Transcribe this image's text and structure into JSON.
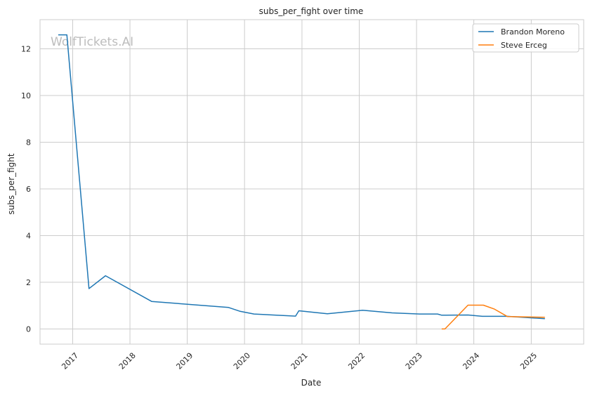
{
  "chart_data": {
    "type": "line",
    "title": "subs_per_fight over time",
    "xlabel": "Date",
    "ylabel": "subs_per_fight",
    "watermark": "WolfTickets.AI",
    "x_type": "date",
    "xlim": [
      "2016-06-07",
      "2025-12-01"
    ],
    "ylim": [
      -0.65,
      13.25
    ],
    "yticks": [
      0,
      2,
      4,
      6,
      8,
      10,
      12
    ],
    "xticks": [
      {
        "date": "2017-01-01",
        "label": "2017"
      },
      {
        "date": "2018-01-01",
        "label": "2018"
      },
      {
        "date": "2019-01-01",
        "label": "2019"
      },
      {
        "date": "2020-01-01",
        "label": "2020"
      },
      {
        "date": "2021-01-01",
        "label": "2021"
      },
      {
        "date": "2022-01-01",
        "label": "2022"
      },
      {
        "date": "2023-01-01",
        "label": "2023"
      },
      {
        "date": "2024-01-01",
        "label": "2024"
      },
      {
        "date": "2025-01-01",
        "label": "2025"
      }
    ],
    "grid": true,
    "legend_position": "top-right",
    "series": [
      {
        "name": "Brandon Moreno",
        "color": "#1f77b4",
        "points": [
          [
            "2016-10-01",
            12.6
          ],
          [
            "2016-11-25",
            12.6
          ],
          [
            "2017-04-15",
            1.73
          ],
          [
            "2017-07-29",
            2.28
          ],
          [
            "2018-05-19",
            1.18
          ],
          [
            "2019-09-21",
            0.92
          ],
          [
            "2019-12-01",
            0.76
          ],
          [
            "2020-03-01",
            0.64
          ],
          [
            "2020-11-21",
            0.55
          ],
          [
            "2020-12-12",
            0.78
          ],
          [
            "2021-06-12",
            0.65
          ],
          [
            "2022-01-22",
            0.8
          ],
          [
            "2022-07-30",
            0.69
          ],
          [
            "2023-01-21",
            0.64
          ],
          [
            "2023-05-15",
            0.64
          ],
          [
            "2023-06-10",
            0.59
          ],
          [
            "2023-11-25",
            0.6
          ],
          [
            "2024-02-24",
            0.54
          ],
          [
            "2024-08-01",
            0.54
          ],
          [
            "2025-03-29",
            0.44
          ]
        ]
      },
      {
        "name": "Steve Erceg",
        "color": "#ff7f0e",
        "points": [
          [
            "2023-06-10",
            0.0
          ],
          [
            "2023-07-01",
            0.0
          ],
          [
            "2023-11-25",
            1.02
          ],
          [
            "2024-03-02",
            1.02
          ],
          [
            "2024-05-11",
            0.85
          ],
          [
            "2024-08-03",
            0.53
          ],
          [
            "2025-03-29",
            0.5
          ]
        ]
      }
    ]
  }
}
